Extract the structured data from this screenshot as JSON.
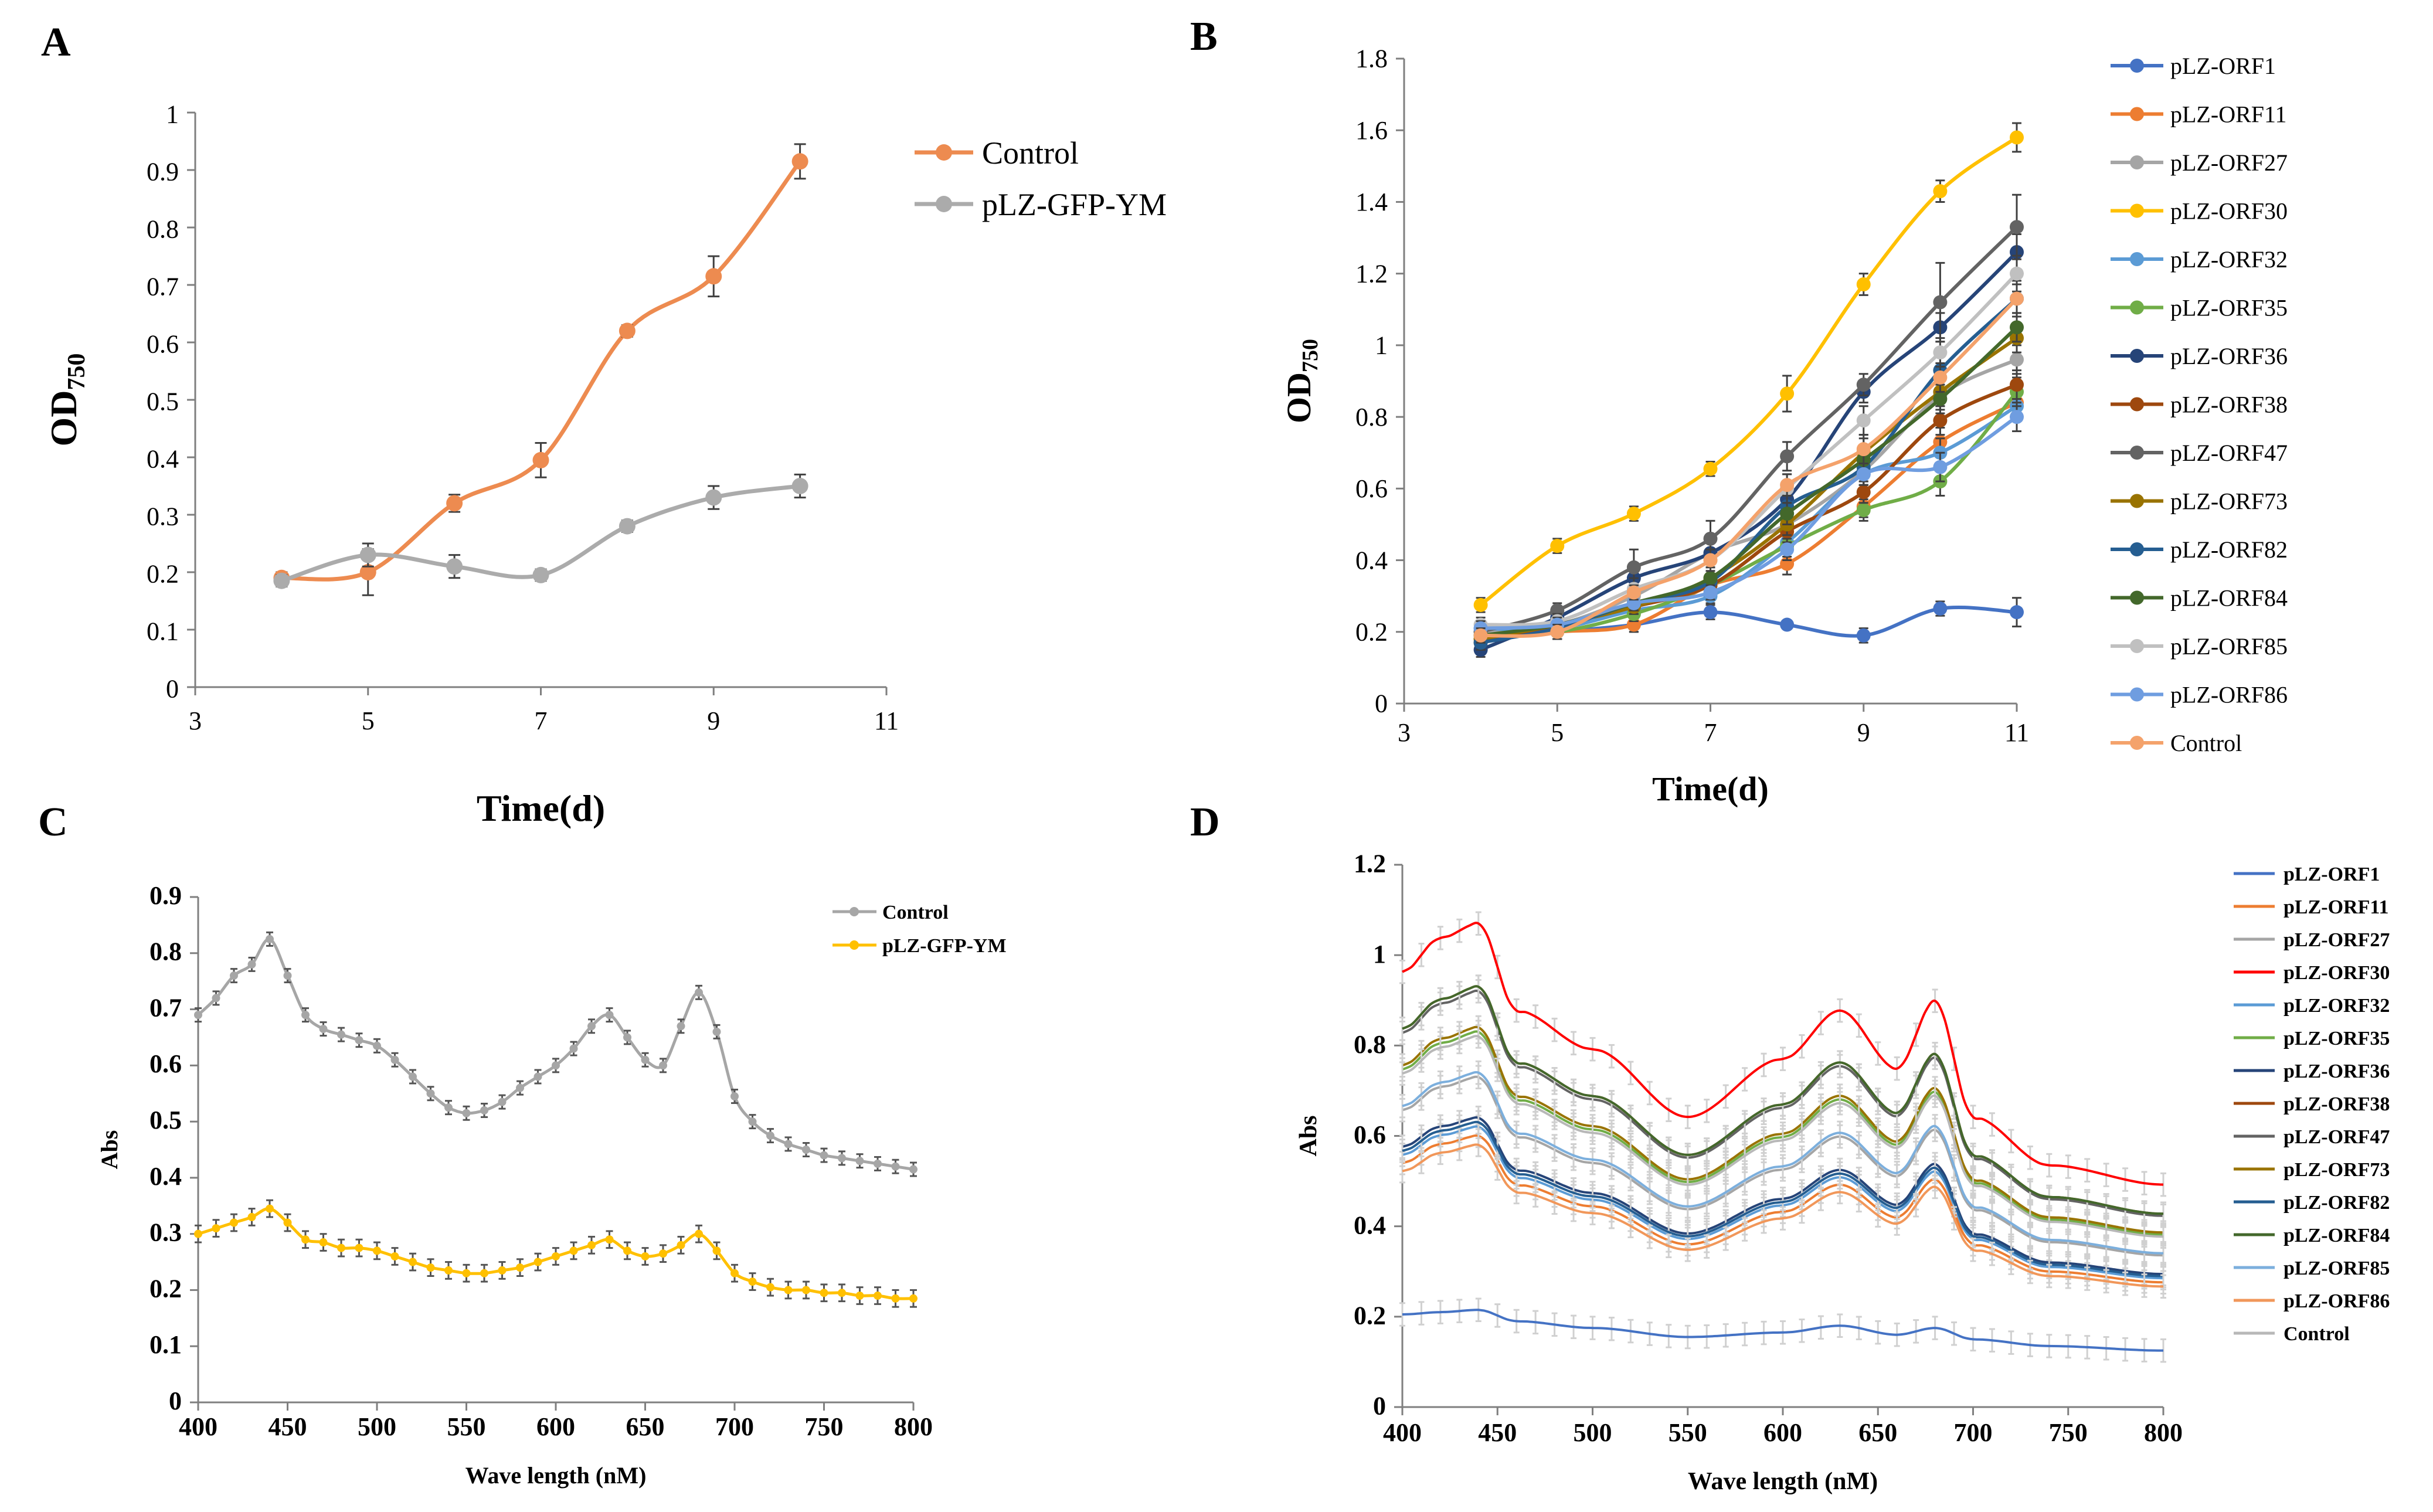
{
  "chart_data": [
    {
      "panel": "A",
      "type": "line",
      "xlabel": "Time(d)",
      "ylabel": "OD",
      "ylabel_sub": "750",
      "xlim": [
        3,
        11
      ],
      "ylim": [
        0,
        1
      ],
      "xticks": [
        "3",
        "5",
        "7",
        "9",
        "11"
      ],
      "yticks": [
        "0",
        "0.1",
        "0.2",
        "0.3",
        "0.4",
        "0.5",
        "0.6",
        "0.7",
        "0.8",
        "0.9",
        "1"
      ],
      "grid": false,
      "legend_position": "top-right",
      "x": [
        4,
        5,
        6,
        7,
        8,
        9,
        10
      ],
      "series": [
        {
          "name": "Control",
          "color": "#ED8B50",
          "values": [
            0.19,
            0.2,
            0.32,
            0.395,
            0.62,
            0.715,
            0.915
          ],
          "errors": [
            0.01,
            0.04,
            0.015,
            0.03,
            0.01,
            0.035,
            0.03
          ]
        },
        {
          "name": "pLZ-GFP-YM",
          "color": "#ABABAB",
          "values": [
            0.185,
            0.23,
            0.21,
            0.195,
            0.28,
            0.33,
            0.35
          ],
          "errors": [
            0.01,
            0.02,
            0.02,
            0.01,
            0.01,
            0.02,
            0.02
          ]
        }
      ]
    },
    {
      "panel": "B",
      "type": "line",
      "xlabel": "Time(d)",
      "ylabel": "OD",
      "ylabel_sub": "750",
      "xlim": [
        3,
        11
      ],
      "ylim": [
        0,
        1.8
      ],
      "xticks": [
        "3",
        "5",
        "7",
        "9",
        "11"
      ],
      "yticks": [
        "0",
        "0.2",
        "0.4",
        "0.6",
        "0.8",
        "1",
        "1.2",
        "1.4",
        "1.6",
        "1.8"
      ],
      "grid": false,
      "legend_position": "right",
      "x": [
        4,
        5,
        6,
        7,
        8,
        9,
        10,
        11
      ],
      "series": [
        {
          "name": "pLZ-ORF1",
          "color": "#4472C4",
          "values": [
            0.18,
            0.2,
            0.22,
            0.255,
            0.22,
            0.19,
            0.265,
            0.255
          ],
          "errors": [
            0.02,
            0.02,
            0.02,
            0.02,
            0.01,
            0.02,
            0.02,
            0.04
          ]
        },
        {
          "name": "pLZ-ORF11",
          "color": "#ED7D31",
          "values": [
            0.18,
            0.2,
            0.22,
            0.33,
            0.39,
            0.55,
            0.73,
            0.84
          ],
          "errors": [
            0.02,
            0.02,
            0.02,
            0.03,
            0.03,
            0.03,
            0.04,
            0.04
          ]
        },
        {
          "name": "pLZ-ORF27",
          "color": "#A5A5A5",
          "values": [
            0.2,
            0.22,
            0.3,
            0.42,
            0.5,
            0.65,
            0.86,
            0.96
          ],
          "errors": [
            0.02,
            0.02,
            0.03,
            0.03,
            0.03,
            0.04,
            0.04,
            0.04
          ]
        },
        {
          "name": "pLZ-ORF30",
          "color": "#FFC000",
          "values": [
            0.275,
            0.44,
            0.53,
            0.655,
            0.865,
            1.17,
            1.43,
            1.58
          ],
          "errors": [
            0.02,
            0.02,
            0.02,
            0.02,
            0.05,
            0.03,
            0.03,
            0.04
          ]
        },
        {
          "name": "pLZ-ORF32",
          "color": "#5B9BD5",
          "values": [
            0.21,
            0.21,
            0.26,
            0.3,
            0.45,
            0.64,
            0.7,
            0.83
          ],
          "errors": [
            0.02,
            0.02,
            0.02,
            0.02,
            0.03,
            0.03,
            0.04,
            0.04
          ]
        },
        {
          "name": "pLZ-ORF35",
          "color": "#70AD47",
          "values": [
            0.19,
            0.2,
            0.25,
            0.33,
            0.44,
            0.54,
            0.62,
            0.87
          ],
          "errors": [
            0.02,
            0.02,
            0.02,
            0.02,
            0.03,
            0.03,
            0.04,
            0.04
          ]
        },
        {
          "name": "pLZ-ORF36",
          "color": "#264478",
          "values": [
            0.15,
            0.24,
            0.35,
            0.42,
            0.57,
            0.87,
            1.05,
            1.26
          ],
          "errors": [
            0.02,
            0.02,
            0.03,
            0.03,
            0.04,
            0.03,
            0.04,
            0.05
          ]
        },
        {
          "name": "pLZ-ORF38",
          "color": "#9E480E",
          "values": [
            0.17,
            0.22,
            0.27,
            0.33,
            0.48,
            0.59,
            0.79,
            0.89
          ],
          "errors": [
            0.02,
            0.02,
            0.02,
            0.03,
            0.03,
            0.03,
            0.04,
            0.04
          ]
        },
        {
          "name": "pLZ-ORF47",
          "color": "#636363",
          "values": [
            0.2,
            0.26,
            0.38,
            0.46,
            0.69,
            0.89,
            1.12,
            1.33
          ],
          "errors": [
            0.02,
            0.02,
            0.05,
            0.05,
            0.04,
            0.03,
            0.11,
            0.09
          ]
        },
        {
          "name": "pLZ-ORF73",
          "color": "#997300",
          "values": [
            0.18,
            0.22,
            0.27,
            0.35,
            0.5,
            0.7,
            0.87,
            1.02
          ],
          "errors": [
            0.02,
            0.02,
            0.02,
            0.03,
            0.03,
            0.04,
            0.04,
            0.04
          ]
        },
        {
          "name": "pLZ-ORF82",
          "color": "#255E91",
          "values": [
            0.17,
            0.21,
            0.28,
            0.34,
            0.55,
            0.66,
            0.93,
            1.13
          ],
          "errors": [
            0.02,
            0.02,
            0.02,
            0.03,
            0.03,
            0.04,
            0.04,
            0.05
          ]
        },
        {
          "name": "pLZ-ORF84",
          "color": "#43682B",
          "values": [
            0.19,
            0.22,
            0.28,
            0.35,
            0.53,
            0.68,
            0.85,
            1.05
          ],
          "errors": [
            0.02,
            0.02,
            0.02,
            0.03,
            0.03,
            0.04,
            0.04,
            0.04
          ]
        },
        {
          "name": "pLZ-ORF85",
          "color": "#C0C0C0",
          "values": [
            0.22,
            0.23,
            0.32,
            0.4,
            0.6,
            0.79,
            0.98,
            1.2
          ],
          "errors": [
            0.02,
            0.02,
            0.03,
            0.03,
            0.04,
            0.04,
            0.04,
            0.05
          ]
        },
        {
          "name": "pLZ-ORF86",
          "color": "#6F9DE0",
          "values": [
            0.21,
            0.22,
            0.28,
            0.31,
            0.43,
            0.64,
            0.66,
            0.8
          ],
          "errors": [
            0.02,
            0.02,
            0.02,
            0.02,
            0.03,
            0.03,
            0.04,
            0.04
          ]
        },
        {
          "name": "Control",
          "color": "#F4A26B",
          "values": [
            0.19,
            0.2,
            0.31,
            0.4,
            0.61,
            0.71,
            0.91,
            1.13
          ],
          "errors": [
            0.02,
            0.02,
            0.02,
            0.03,
            0.03,
            0.04,
            0.04,
            0.04
          ]
        }
      ]
    },
    {
      "panel": "C",
      "type": "line",
      "xlabel": "Wave length (nM)",
      "ylabel": "Abs",
      "xlim": [
        400,
        800
      ],
      "ylim": [
        0,
        0.9
      ],
      "xticks": [
        "400",
        "450",
        "500",
        "550",
        "600",
        "650",
        "700",
        "750",
        "800"
      ],
      "yticks": [
        "0",
        "0.1",
        "0.2",
        "0.3",
        "0.4",
        "0.5",
        "0.6",
        "0.7",
        "0.8",
        "0.9"
      ],
      "grid": false,
      "legend_position": "top-right",
      "x": [
        400,
        410,
        420,
        430,
        440,
        450,
        460,
        470,
        480,
        490,
        500,
        510,
        520,
        530,
        540,
        550,
        560,
        570,
        580,
        590,
        600,
        610,
        620,
        630,
        640,
        650,
        660,
        670,
        680,
        690,
        700,
        710,
        720,
        730,
        740,
        750,
        760,
        770,
        780,
        790,
        800
      ],
      "series": [
        {
          "name": "Control",
          "color": "#A6A6A6",
          "values": [
            0.69,
            0.72,
            0.76,
            0.78,
            0.825,
            0.76,
            0.69,
            0.665,
            0.655,
            0.645,
            0.635,
            0.61,
            0.58,
            0.55,
            0.525,
            0.515,
            0.52,
            0.535,
            0.56,
            0.58,
            0.6,
            0.63,
            0.67,
            0.69,
            0.65,
            0.61,
            0.6,
            0.67,
            0.73,
            0.66,
            0.545,
            0.5,
            0.475,
            0.46,
            0.45,
            0.44,
            0.435,
            0.43,
            0.425,
            0.42,
            0.415
          ],
          "error": 0.012
        },
        {
          "name": "pLZ-GFP-YM",
          "color": "#FFC000",
          "values": [
            0.3,
            0.31,
            0.32,
            0.33,
            0.345,
            0.32,
            0.29,
            0.285,
            0.275,
            0.275,
            0.27,
            0.26,
            0.25,
            0.24,
            0.235,
            0.23,
            0.23,
            0.235,
            0.24,
            0.25,
            0.26,
            0.27,
            0.28,
            0.29,
            0.27,
            0.26,
            0.265,
            0.28,
            0.3,
            0.27,
            0.23,
            0.215,
            0.205,
            0.2,
            0.2,
            0.195,
            0.195,
            0.19,
            0.19,
            0.185,
            0.185
          ],
          "error": 0.015
        }
      ]
    },
    {
      "panel": "D",
      "type": "line",
      "xlabel": "Wave length (nM)",
      "ylabel": "Abs",
      "xlim": [
        400,
        800
      ],
      "ylim": [
        0,
        1.2
      ],
      "xticks": [
        "400",
        "450",
        "500",
        "550",
        "600",
        "650",
        "700",
        "750",
        "800"
      ],
      "yticks": [
        "0",
        "0.2",
        "0.4",
        "0.6",
        "0.8",
        "1",
        "1.2"
      ],
      "grid": false,
      "legend_position": "right",
      "base_x": [
        400,
        420,
        440,
        460,
        500,
        550,
        600,
        630,
        660,
        680,
        700,
        740,
        800
      ],
      "base_shape": [
        0.9,
        0.97,
        1.0,
        0.82,
        0.74,
        0.6,
        0.72,
        0.82,
        0.7,
        0.84,
        0.6,
        0.5,
        0.46
      ],
      "series": [
        {
          "name": "pLZ-ORF1",
          "color": "#4472C4",
          "values_x": [
            400,
            420,
            440,
            460,
            500,
            550,
            600,
            630,
            660,
            680,
            700,
            740,
            800
          ],
          "values": [
            0.205,
            0.21,
            0.215,
            0.19,
            0.175,
            0.155,
            0.165,
            0.18,
            0.16,
            0.175,
            0.15,
            0.135,
            0.125
          ]
        },
        {
          "name": "pLZ-ORF11",
          "color": "#ED7D31",
          "peak": 0.6
        },
        {
          "name": "pLZ-ORF27",
          "color": "#A5A5A5",
          "peak": 0.73
        },
        {
          "name": "pLZ-ORF30",
          "color": "#FF0000",
          "peak": 1.07
        },
        {
          "name": "pLZ-ORF32",
          "color": "#5B9BD5",
          "peak": 0.62
        },
        {
          "name": "pLZ-ORF35",
          "color": "#70AD47",
          "peak": 0.83
        },
        {
          "name": "pLZ-ORF36",
          "color": "#264478",
          "peak": 0.64
        },
        {
          "name": "pLZ-ORF38",
          "color": "#9E480E",
          "peak": 0.93
        },
        {
          "name": "pLZ-ORF47",
          "color": "#636363",
          "peak": 0.92
        },
        {
          "name": "pLZ-ORF73",
          "color": "#997300",
          "peak": 0.84
        },
        {
          "name": "pLZ-ORF82",
          "color": "#255E91",
          "peak": 0.63
        },
        {
          "name": "pLZ-ORF84",
          "color": "#43682B",
          "peak": 0.93
        },
        {
          "name": "pLZ-ORF85",
          "color": "#7CAFDD",
          "peak": 0.74
        },
        {
          "name": "pLZ-ORF86",
          "color": "#F1975A",
          "peak": 0.58
        },
        {
          "name": "Control",
          "color": "#B8B8B8",
          "peak": 0.82
        }
      ]
    }
  ]
}
